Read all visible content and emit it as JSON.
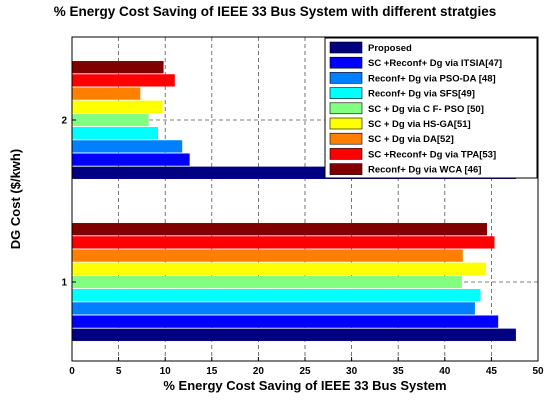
{
  "chart_data": {
    "type": "bar",
    "orientation": "horizontal",
    "title": "% Energy Cost Saving of IEEE 33 Bus System with different stratgies",
    "xlabel": "% Energy Cost Saving of IEEE 33 Bus System",
    "ylabel": "DG Cost ($/kwh)",
    "xlim": [
      0,
      50
    ],
    "xticks": [
      0,
      5,
      10,
      15,
      20,
      25,
      30,
      35,
      40,
      45,
      50
    ],
    "categories": [
      "1",
      "2"
    ],
    "grid": true,
    "legend_position": "top-right",
    "series": [
      {
        "name": "Proposed",
        "color": "#000080",
        "values": [
          47.6,
          47.6
        ]
      },
      {
        "name": "SC +Reconf+ Dg via ITSIA[47]",
        "color": "#0000FF",
        "values": [
          45.7,
          12.6
        ]
      },
      {
        "name": "Reconf+ Dg via PSO-DA [48]",
        "color": "#0080FF",
        "values": [
          43.2,
          11.8
        ]
      },
      {
        "name": "Reconf+ Dg via SFS[49]",
        "color": "#00FFFF",
        "values": [
          43.8,
          9.2
        ]
      },
      {
        "name": "SC + Dg via C F- PSO [50]",
        "color": "#80FF80",
        "values": [
          41.8,
          8.2
        ]
      },
      {
        "name": "SC + Dg via HS-GA[51]",
        "color": "#FFFF00",
        "values": [
          44.4,
          9.7
        ]
      },
      {
        "name": "SC + Dg via DA[52]",
        "color": "#FF8000",
        "values": [
          41.9,
          7.3
        ]
      },
      {
        "name": "SC +Reconf+ Dg via TPA[53]",
        "color": "#FF0000",
        "values": [
          45.3,
          11.0
        ]
      },
      {
        "name": "Reconf+ Dg via WCA [46]",
        "color": "#800000",
        "values": [
          44.5,
          9.8
        ]
      }
    ]
  }
}
